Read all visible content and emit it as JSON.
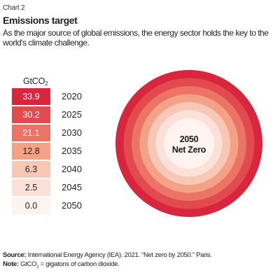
{
  "header": {
    "chart_label": "Chart 2",
    "title": "Emissions target",
    "subtitle": "As the major source of global emissions, the energy sector holds the key to the world's climate challenge."
  },
  "chart_data": {
    "type": "table",
    "unit_main": "GtCO",
    "unit_sub": "2",
    "categories": [
      "2020",
      "2025",
      "2030",
      "2035",
      "2040",
      "2045",
      "2050"
    ],
    "values": [
      "33.9",
      "30.2",
      "21.1",
      "12.8",
      "6.3",
      "2.5",
      "0.0"
    ],
    "colors": [
      "#d7263d",
      "#e34a50",
      "#ec7466",
      "#f3a187",
      "#f8c8b6",
      "#fbe1d7",
      "#fef3ee"
    ],
    "text_colors": [
      "#ffffff",
      "#ffffff",
      "#ffffff",
      "#231f20",
      "#231f20",
      "#231f20",
      "#231f20"
    ],
    "center_line1": "2050",
    "center_line2": "Net Zero"
  },
  "footer": {
    "source_label": "Source:",
    "source_text": " International Energy Agency (IEA). 2021. “Net zero by 2050.” Paris.",
    "note_label": "Note:",
    "note_main": " GtCO",
    "note_sub": "2",
    "note_rest": " = gigatons of carbon dioxide."
  }
}
